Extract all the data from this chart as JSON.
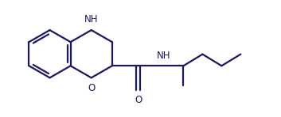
{
  "background_color": "#ffffff",
  "line_color": "#1a1a5a",
  "line_width": 1.6,
  "font_size_atom": 8.5,
  "fig_width": 3.53,
  "fig_height": 1.48,
  "dpi": 100,
  "xlim": [
    -0.3,
    8.8
  ],
  "ylim": [
    0.5,
    4.2
  ]
}
